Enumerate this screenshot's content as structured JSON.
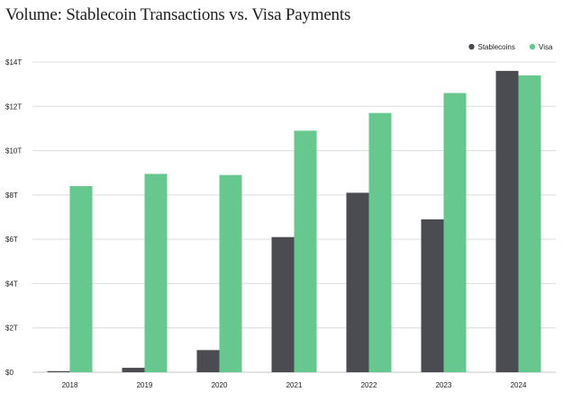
{
  "chart_data": {
    "type": "bar",
    "title": "Volume: Stablecoin Transactions vs. Visa Payments",
    "categories": [
      "2018",
      "2019",
      "2020",
      "2021",
      "2022",
      "2023",
      "2024"
    ],
    "series": [
      {
        "name": "Stablecoins",
        "color": "#4a4c52",
        "values": [
          0.05,
          0.2,
          1.0,
          6.1,
          8.1,
          6.9,
          13.6
        ]
      },
      {
        "name": "Visa",
        "color": "#66c78f",
        "values": [
          8.4,
          8.95,
          8.9,
          10.9,
          11.7,
          12.6,
          13.4
        ]
      }
    ],
    "yticks": [
      "$0",
      "$2T",
      "$4T",
      "$6T",
      "$8T",
      "$10T",
      "$12T",
      "$14T"
    ],
    "ylim": [
      0,
      14
    ],
    "xlabel": "",
    "ylabel": "",
    "legend": "top-right",
    "grid": true
  }
}
